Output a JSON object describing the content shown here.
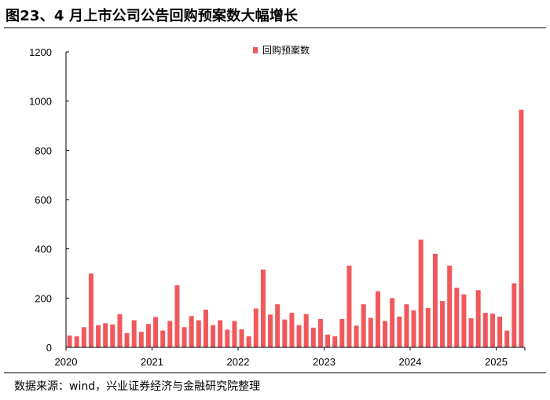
{
  "header": {
    "title": "图23、4 月上市公司公告回购预案数大幅增长"
  },
  "footer": {
    "source": "数据来源：wind，兴业证券经济与金融研究院整理"
  },
  "colors": {
    "bar": "#f0585c",
    "axis": "#000000"
  },
  "chart_data": {
    "type": "bar",
    "title": "",
    "xlabel": "",
    "ylabel": "",
    "ylim": [
      0,
      1200
    ],
    "yticks": [
      0,
      200,
      400,
      600,
      800,
      1000,
      1200
    ],
    "xtick_labels": [
      "2020",
      "2021",
      "2022",
      "2023",
      "2024",
      "2025"
    ],
    "legend": {
      "position": "top-center"
    },
    "grid": false,
    "x_start": "2020-01",
    "x_end": "2025-04",
    "series": [
      {
        "name": "回购预案数",
        "values": [
          48,
          45,
          82,
          300,
          90,
          98,
          93,
          135,
          58,
          110,
          63,
          95,
          123,
          68,
          107,
          252,
          82,
          127,
          110,
          153,
          90,
          110,
          72,
          107,
          73,
          45,
          158,
          316,
          133,
          175,
          113,
          140,
          90,
          135,
          80,
          115,
          52,
          45,
          115,
          332,
          88,
          175,
          120,
          228,
          107,
          200,
          125,
          175,
          150,
          438,
          160,
          380,
          188,
          332,
          242,
          215,
          118,
          232,
          140,
          137,
          125,
          68,
          260,
          965
        ]
      }
    ]
  }
}
